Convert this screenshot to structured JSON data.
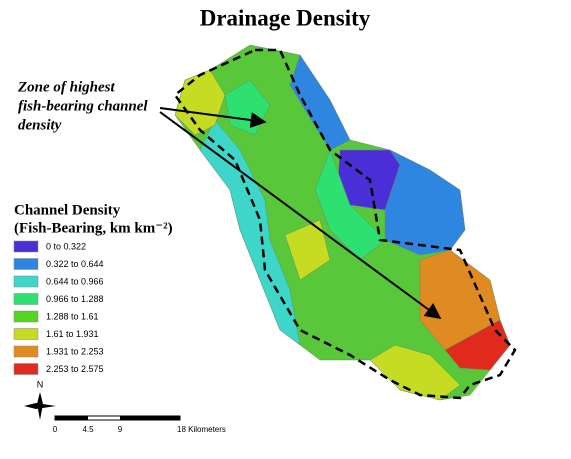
{
  "title": "Drainage Density",
  "annotation": {
    "lines": [
      "Zone of highest",
      "fish-bearing channel",
      "density"
    ]
  },
  "legend": {
    "title_lines": [
      "Channel Density",
      "(Fish-Bearing, km km⁻²)"
    ],
    "items": [
      {
        "label": "0 to 0.322",
        "color": "#4b2fd6"
      },
      {
        "label": "0.322 to 0.644",
        "color": "#2f86e0"
      },
      {
        "label": "0.644 to 0.966",
        "color": "#3ed6c8"
      },
      {
        "label": "0.966 to 1.288",
        "color": "#2ee070"
      },
      {
        "label": "1.288 to 1.61",
        "color": "#52d622"
      },
      {
        "label": "1.61 to 1.931",
        "color": "#c6dc22"
      },
      {
        "label": "1.931 to 2.253",
        "color": "#e08a22"
      },
      {
        "label": "2.253 to 2.575",
        "color": "#e02a1e"
      }
    ]
  },
  "north_arrow": {
    "label": "N"
  },
  "scale_bar": {
    "labels": [
      "0",
      "4.5",
      "9",
      "18 Kilometers"
    ]
  }
}
